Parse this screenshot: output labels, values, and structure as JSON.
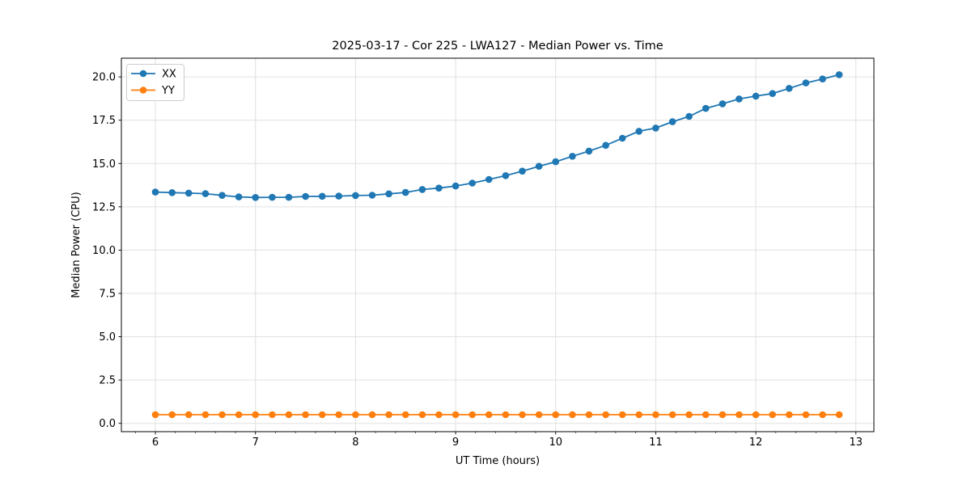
{
  "chart_data": {
    "type": "line",
    "title": "2025-03-17 - Cor 225 - LWA127 - Median Power vs. Time",
    "xlabel": "UT Time (hours)",
    "ylabel": "Median Power (CPU)",
    "x": [
      6.0,
      6.167,
      6.333,
      6.5,
      6.667,
      6.833,
      7.0,
      7.167,
      7.333,
      7.5,
      7.667,
      7.833,
      8.0,
      8.167,
      8.333,
      8.5,
      8.667,
      8.833,
      9.0,
      9.167,
      9.333,
      9.5,
      9.667,
      9.833,
      10.0,
      10.167,
      10.333,
      10.5,
      10.667,
      10.833,
      11.0,
      11.167,
      11.333,
      11.5,
      11.667,
      11.833,
      12.0,
      12.167,
      12.333,
      12.5,
      12.667,
      12.833
    ],
    "series": [
      {
        "name": "XX",
        "color": "#1f77b4",
        "marker": "circle",
        "values": [
          13.35,
          13.32,
          13.29,
          13.26,
          13.16,
          13.07,
          13.04,
          13.05,
          13.05,
          13.1,
          13.11,
          13.12,
          13.15,
          13.17,
          13.25,
          13.33,
          13.5,
          13.58,
          13.7,
          13.87,
          14.08,
          14.3,
          14.56,
          14.84,
          15.1,
          15.42,
          15.72,
          16.05,
          16.46,
          16.86,
          17.05,
          17.41,
          17.72,
          18.18,
          18.45,
          18.73,
          18.89,
          19.04,
          19.34,
          19.65,
          19.88,
          20.13
        ]
      },
      {
        "name": "YY",
        "color": "#ff7f0e",
        "marker": "circle",
        "values": [
          0.5,
          0.5,
          0.5,
          0.5,
          0.5,
          0.5,
          0.5,
          0.5,
          0.5,
          0.5,
          0.5,
          0.5,
          0.5,
          0.5,
          0.5,
          0.5,
          0.5,
          0.5,
          0.5,
          0.5,
          0.5,
          0.5,
          0.5,
          0.5,
          0.5,
          0.5,
          0.5,
          0.5,
          0.5,
          0.5,
          0.5,
          0.5,
          0.5,
          0.5,
          0.5,
          0.5,
          0.5,
          0.5,
          0.5,
          0.5,
          0.5,
          0.5
        ]
      }
    ],
    "xlim": [
      5.66,
      13.18
    ],
    "ylim": [
      -0.48,
      21.08
    ],
    "xticks": [
      6,
      7,
      8,
      9,
      10,
      11,
      12,
      13
    ],
    "xtick_labels": [
      "6",
      "7",
      "8",
      "9",
      "10",
      "11",
      "12",
      "13"
    ],
    "yticks": [
      0,
      2.5,
      5,
      7.5,
      10,
      12.5,
      15,
      17.5,
      20
    ],
    "ytick_labels": [
      "0.0",
      "2.5",
      "5.0",
      "7.5",
      "10.0",
      "12.5",
      "15.0",
      "17.5",
      "20.0"
    ],
    "x_minor_tick_step": 0.2,
    "grid": true,
    "legend": {
      "position": "upper left",
      "labels": [
        "XX",
        "YY"
      ]
    },
    "colors": {
      "grid": "#e0e0e0",
      "spine": "#000000",
      "background": "#ffffff",
      "legend_border": "#cccccc"
    }
  }
}
